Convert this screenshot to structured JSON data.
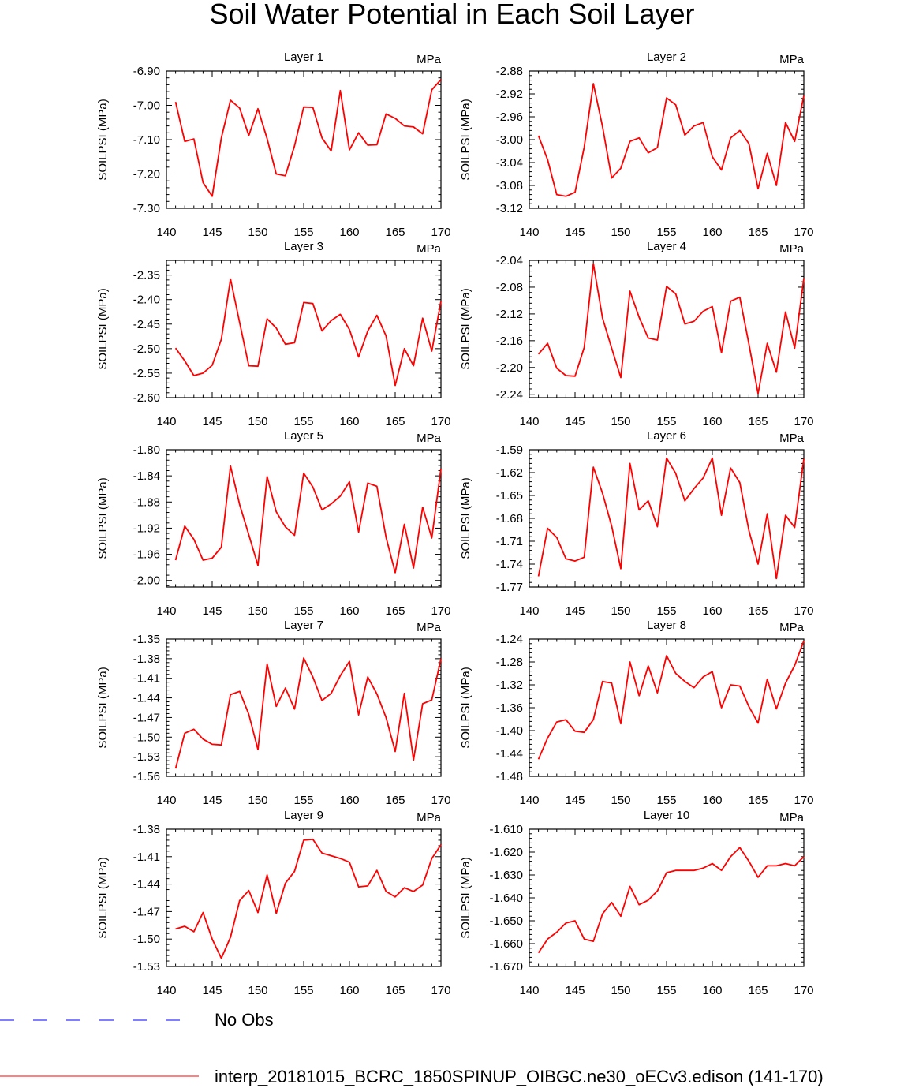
{
  "title": "Soil Water Potential in Each Soil Layer",
  "colors": {
    "model": "#ff0000",
    "obs": "#3333ff",
    "axis": "#000000"
  },
  "legend": [
    {
      "label": "No Obs",
      "style": "dashed",
      "color": "#3333ff"
    },
    {
      "label": "interp_20181015_BCRC_1850SPINUP_OIBGC.ne30_oECv3.edison (141-170)",
      "style": "solid",
      "color": "#ff0000"
    }
  ],
  "chart_data": [
    {
      "type": "line",
      "title": "Layer 1",
      "units": "MPa",
      "ylabel": "SOILPSI  (MPa)",
      "xlim": [
        140,
        170
      ],
      "xticks": [
        "140",
        "145",
        "150",
        "155",
        "160",
        "165",
        "170"
      ],
      "ylim": [
        -7.3,
        -6.9
      ],
      "yticks": [
        "-6.90",
        "-7.00",
        "-7.10",
        "-7.20",
        "-7.30"
      ],
      "x": [
        141,
        142,
        143,
        144,
        145,
        146,
        147,
        148,
        149,
        150,
        151,
        152,
        153,
        154,
        155,
        156,
        157,
        158,
        159,
        160,
        161,
        162,
        163,
        164,
        165,
        166,
        167,
        168,
        169,
        170
      ],
      "values": [
        -6.99,
        -7.105,
        -7.098,
        -7.225,
        -7.265,
        -7.095,
        -6.985,
        -7.008,
        -7.088,
        -7.01,
        -7.097,
        -7.2,
        -7.205,
        -7.118,
        -7.005,
        -7.006,
        -7.095,
        -7.133,
        -6.957,
        -7.13,
        -7.08,
        -7.116,
        -7.115,
        -7.025,
        -7.038,
        -7.06,
        -7.063,
        -7.083,
        -6.955,
        -6.925
      ]
    },
    {
      "type": "line",
      "title": "Layer 2",
      "units": "MPa",
      "ylabel": "SOILPSI  (MPa)",
      "xlim": [
        140,
        170
      ],
      "xticks": [
        "140",
        "145",
        "150",
        "155",
        "160",
        "165",
        "170"
      ],
      "ylim": [
        -3.12,
        -2.88
      ],
      "yticks": [
        "-2.88",
        "-2.92",
        "-2.96",
        "-3.00",
        "-3.04",
        "-3.08",
        "-3.12"
      ],
      "x": [
        141,
        142,
        143,
        144,
        145,
        146,
        147,
        148,
        149,
        150,
        151,
        152,
        153,
        154,
        155,
        156,
        157,
        158,
        159,
        160,
        161,
        162,
        163,
        164,
        165,
        166,
        167,
        168,
        169,
        170
      ],
      "values": [
        -2.993,
        -3.035,
        -3.096,
        -3.099,
        -3.092,
        -3.013,
        -2.902,
        -2.977,
        -3.067,
        -3.05,
        -3.003,
        -2.997,
        -3.023,
        -3.014,
        -2.927,
        -2.939,
        -2.992,
        -2.976,
        -2.97,
        -3.03,
        -3.053,
        -2.997,
        -2.984,
        -3.007,
        -3.086,
        -3.024,
        -3.08,
        -2.97,
        -3.003,
        -2.923
      ]
    },
    {
      "type": "line",
      "title": "Layer 3",
      "units": "MPa",
      "ylabel": "SOILPSI  (MPa)",
      "xlim": [
        140,
        170
      ],
      "xticks": [
        "140",
        "145",
        "150",
        "155",
        "160",
        "165",
        "170"
      ],
      "ylim": [
        -2.6,
        -2.32
      ],
      "yticks": [
        "-2.35",
        "-2.40",
        "-2.45",
        "-2.50",
        "-2.55",
        "-2.60"
      ],
      "x": [
        141,
        142,
        143,
        144,
        145,
        146,
        147,
        148,
        149,
        150,
        151,
        152,
        153,
        154,
        155,
        156,
        157,
        158,
        159,
        160,
        161,
        162,
        163,
        164,
        165,
        166,
        167,
        168,
        169,
        170
      ],
      "values": [
        -2.499,
        -2.525,
        -2.555,
        -2.55,
        -2.534,
        -2.481,
        -2.358,
        -2.447,
        -2.535,
        -2.536,
        -2.439,
        -2.458,
        -2.491,
        -2.488,
        -2.406,
        -2.408,
        -2.464,
        -2.443,
        -2.43,
        -2.461,
        -2.517,
        -2.464,
        -2.432,
        -2.474,
        -2.575,
        -2.5,
        -2.535,
        -2.438,
        -2.505,
        -2.403
      ]
    },
    {
      "type": "line",
      "title": "Layer 4",
      "units": "MPa",
      "ylabel": "SOILPSI  (MPa)",
      "xlim": [
        140,
        170
      ],
      "xticks": [
        "140",
        "145",
        "150",
        "155",
        "160",
        "165",
        "170"
      ],
      "ylim": [
        -2.245,
        -2.04
      ],
      "yticks": [
        "-2.04",
        "-2.08",
        "-2.12",
        "-2.16",
        "-2.20",
        "-2.24"
      ],
      "x": [
        141,
        142,
        143,
        144,
        145,
        146,
        147,
        148,
        149,
        150,
        151,
        152,
        153,
        154,
        155,
        156,
        157,
        158,
        159,
        160,
        161,
        162,
        163,
        164,
        165,
        166,
        167,
        168,
        169,
        170
      ],
      "values": [
        -2.18,
        -2.164,
        -2.201,
        -2.212,
        -2.213,
        -2.17,
        -2.045,
        -2.126,
        -2.171,
        -2.215,
        -2.086,
        -2.125,
        -2.156,
        -2.159,
        -2.079,
        -2.09,
        -2.135,
        -2.131,
        -2.116,
        -2.109,
        -2.178,
        -2.101,
        -2.095,
        -2.165,
        -2.239,
        -2.164,
        -2.207,
        -2.117,
        -2.171,
        -2.067
      ]
    },
    {
      "type": "line",
      "title": "Layer 5",
      "units": "MPa",
      "ylabel": "SOILPSI  (MPa)",
      "xlim": [
        140,
        170
      ],
      "xticks": [
        "140",
        "145",
        "150",
        "155",
        "160",
        "165",
        "170"
      ],
      "ylim": [
        -2.01,
        -1.8
      ],
      "yticks": [
        "-1.80",
        "-1.84",
        "-1.88",
        "-1.92",
        "-1.96",
        "-2.00"
      ],
      "x": [
        141,
        142,
        143,
        144,
        145,
        146,
        147,
        148,
        149,
        150,
        151,
        152,
        153,
        154,
        155,
        156,
        157,
        158,
        159,
        160,
        161,
        162,
        163,
        164,
        165,
        166,
        167,
        168,
        169,
        170
      ],
      "values": [
        -1.969,
        -1.917,
        -1.937,
        -1.969,
        -1.966,
        -1.949,
        -1.825,
        -1.884,
        -1.93,
        -1.977,
        -1.841,
        -1.895,
        -1.918,
        -1.931,
        -1.836,
        -1.857,
        -1.892,
        -1.883,
        -1.871,
        -1.849,
        -1.926,
        -1.851,
        -1.856,
        -1.934,
        -1.988,
        -1.914,
        -1.981,
        -1.888,
        -1.935,
        -1.829
      ]
    },
    {
      "type": "line",
      "title": "Layer 6",
      "units": "MPa",
      "ylabel": "SOILPSI  (MPa)",
      "xlim": [
        140,
        170
      ],
      "xticks": [
        "140",
        "145",
        "150",
        "155",
        "160",
        "165",
        "170"
      ],
      "ylim": [
        -1.77,
        -1.59
      ],
      "yticks": [
        "-1.59",
        "-1.62",
        "-1.65",
        "-1.68",
        "-1.71",
        "-1.74",
        "-1.77"
      ],
      "x": [
        141,
        142,
        143,
        144,
        145,
        146,
        147,
        148,
        149,
        150,
        151,
        152,
        153,
        154,
        155,
        156,
        157,
        158,
        159,
        160,
        161,
        162,
        163,
        164,
        165,
        166,
        167,
        168,
        169,
        170
      ],
      "values": [
        -1.756,
        -1.693,
        -1.705,
        -1.733,
        -1.736,
        -1.731,
        -1.613,
        -1.647,
        -1.69,
        -1.746,
        -1.608,
        -1.669,
        -1.657,
        -1.691,
        -1.601,
        -1.621,
        -1.657,
        -1.641,
        -1.627,
        -1.601,
        -1.676,
        -1.614,
        -1.633,
        -1.696,
        -1.74,
        -1.674,
        -1.759,
        -1.676,
        -1.692,
        -1.602
      ]
    },
    {
      "type": "line",
      "title": "Layer 7",
      "units": "MPa",
      "ylabel": "SOILPSI  (MPa)",
      "xlim": [
        140,
        170
      ],
      "xticks": [
        "140",
        "145",
        "150",
        "155",
        "160",
        "165",
        "170"
      ],
      "ylim": [
        -1.56,
        -1.35
      ],
      "yticks": [
        "-1.35",
        "-1.38",
        "-1.41",
        "-1.44",
        "-1.47",
        "-1.50",
        "-1.53",
        "-1.56"
      ],
      "x": [
        141,
        142,
        143,
        144,
        145,
        146,
        147,
        148,
        149,
        150,
        151,
        152,
        153,
        154,
        155,
        156,
        157,
        158,
        159,
        160,
        161,
        162,
        163,
        164,
        165,
        166,
        167,
        168,
        169,
        170
      ],
      "values": [
        -1.548,
        -1.494,
        -1.488,
        -1.503,
        -1.511,
        -1.512,
        -1.435,
        -1.43,
        -1.465,
        -1.519,
        -1.388,
        -1.453,
        -1.425,
        -1.457,
        -1.379,
        -1.408,
        -1.444,
        -1.433,
        -1.406,
        -1.384,
        -1.466,
        -1.408,
        -1.434,
        -1.47,
        -1.522,
        -1.433,
        -1.535,
        -1.449,
        -1.443,
        -1.38
      ]
    },
    {
      "type": "line",
      "title": "Layer 8",
      "units": "MPa",
      "ylabel": "SOILPSI  (MPa)",
      "xlim": [
        140,
        170
      ],
      "xticks": [
        "140",
        "145",
        "150",
        "155",
        "160",
        "165",
        "170"
      ],
      "ylim": [
        -1.48,
        -1.24
      ],
      "yticks": [
        "-1.24",
        "-1.28",
        "-1.32",
        "-1.36",
        "-1.40",
        "-1.44",
        "-1.48"
      ],
      "x": [
        141,
        142,
        143,
        144,
        145,
        146,
        147,
        148,
        149,
        150,
        151,
        152,
        153,
        154,
        155,
        156,
        157,
        158,
        159,
        160,
        161,
        162,
        163,
        164,
        165,
        166,
        167,
        168,
        169,
        170
      ],
      "values": [
        -1.45,
        -1.413,
        -1.385,
        -1.381,
        -1.401,
        -1.403,
        -1.381,
        -1.314,
        -1.317,
        -1.388,
        -1.28,
        -1.339,
        -1.287,
        -1.334,
        -1.269,
        -1.3,
        -1.314,
        -1.325,
        -1.306,
        -1.297,
        -1.36,
        -1.32,
        -1.322,
        -1.358,
        -1.387,
        -1.31,
        -1.362,
        -1.317,
        -1.286,
        -1.243
      ]
    },
    {
      "type": "line",
      "title": "Layer 9",
      "units": "MPa",
      "ylabel": "SOILPSI  (MPa)",
      "xlim": [
        140,
        170
      ],
      "xticks": [
        "140",
        "145",
        "150",
        "155",
        "160",
        "165",
        "170"
      ],
      "ylim": [
        -1.53,
        -1.38
      ],
      "yticks": [
        "-1.38",
        "-1.41",
        "-1.44",
        "-1.47",
        "-1.50",
        "-1.53"
      ],
      "x": [
        141,
        142,
        143,
        144,
        145,
        146,
        147,
        148,
        149,
        150,
        151,
        152,
        153,
        154,
        155,
        156,
        157,
        158,
        159,
        160,
        161,
        162,
        163,
        164,
        165,
        166,
        167,
        168,
        169,
        170
      ],
      "values": [
        -1.489,
        -1.486,
        -1.492,
        -1.471,
        -1.5,
        -1.521,
        -1.498,
        -1.458,
        -1.447,
        -1.471,
        -1.43,
        -1.472,
        -1.439,
        -1.426,
        -1.392,
        -1.391,
        -1.406,
        -1.409,
        -1.412,
        -1.416,
        -1.443,
        -1.442,
        -1.425,
        -1.448,
        -1.454,
        -1.444,
        -1.448,
        -1.441,
        -1.412,
        -1.397
      ]
    },
    {
      "type": "line",
      "title": "Layer 10",
      "units": "MPa",
      "ylabel": "SOILPSI  (MPa)",
      "xlim": [
        140,
        170
      ],
      "xticks": [
        "140",
        "145",
        "150",
        "155",
        "160",
        "165",
        "170"
      ],
      "ylim": [
        -1.67,
        -1.61
      ],
      "yticks": [
        "-1.610",
        "-1.620",
        "-1.630",
        "-1.640",
        "-1.650",
        "-1.660",
        "-1.670"
      ],
      "x": [
        141,
        142,
        143,
        144,
        145,
        146,
        147,
        148,
        149,
        150,
        151,
        152,
        153,
        154,
        155,
        156,
        157,
        158,
        159,
        160,
        161,
        162,
        163,
        164,
        165,
        166,
        167,
        168,
        169,
        170
      ],
      "values": [
        -1.664,
        -1.658,
        -1.655,
        -1.651,
        -1.65,
        -1.658,
        -1.659,
        -1.647,
        -1.642,
        -1.648,
        -1.635,
        -1.643,
        -1.641,
        -1.637,
        -1.629,
        -1.628,
        -1.628,
        -1.628,
        -1.627,
        -1.625,
        -1.628,
        -1.622,
        -1.618,
        -1.624,
        -1.631,
        -1.626,
        -1.626,
        -1.625,
        -1.626,
        -1.622
      ]
    }
  ]
}
